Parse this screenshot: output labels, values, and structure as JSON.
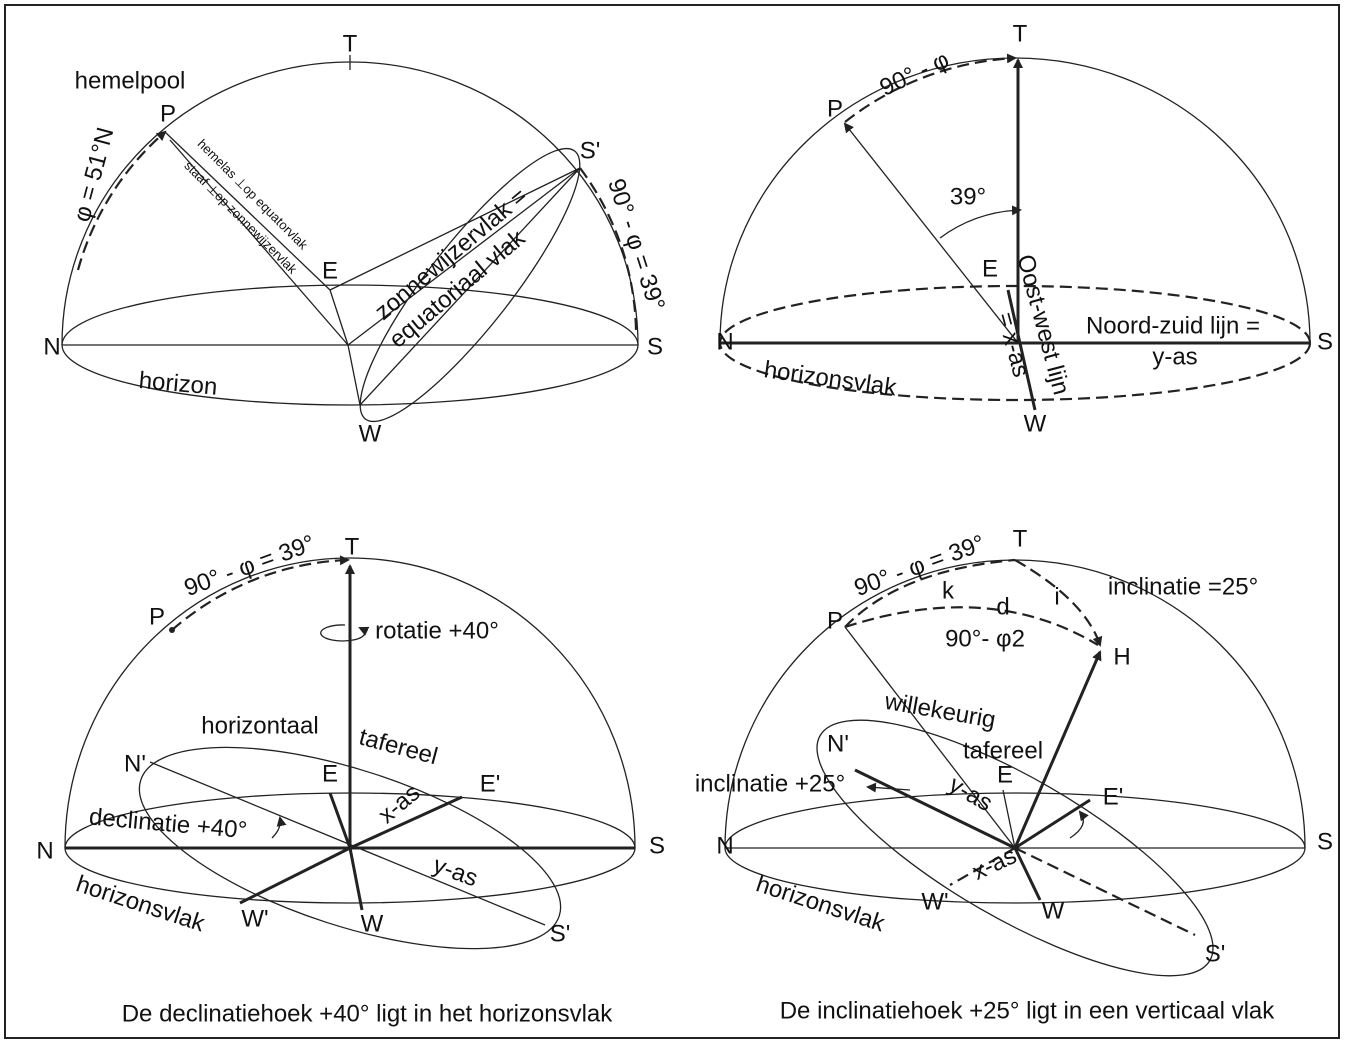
{
  "panels": [
    {
      "labels": [
        "T",
        "hemelpool",
        "P",
        "φ = 51°N",
        "hemelas ⊥op equatorvlak",
        "staaf ⊥op zonnewijzervlak",
        "zonnewijzervlak =",
        "equatoriaal vlak",
        "S'",
        "90° - φ = 39°",
        "E",
        "N",
        "S",
        "horizon",
        "W"
      ]
    },
    {
      "labels": [
        "T",
        "90° - φ",
        "P",
        "39°",
        "E",
        "Oost-west lijn",
        "= x-as",
        "Noord-zuid lijn =",
        "y-as",
        "N",
        "S",
        "horizonsvlak",
        "W"
      ]
    },
    {
      "labels": [
        "90° - φ = 39°",
        "T",
        "P",
        "rotatie +40°",
        "horizontaal",
        "tafereel",
        "N'",
        "E",
        "E'",
        "x-as",
        "declinatie +40°",
        "N",
        "S",
        "y-as",
        "horizonsvlak",
        "W'",
        "W",
        "S'"
      ],
      "caption": "De declinatiehoek +40° ligt in het horizonsvlak"
    },
    {
      "labels": [
        "90° - φ = 39°",
        "T",
        "k",
        "d",
        "i",
        "inclinatie =25°",
        "P",
        "90°- φ2",
        "H",
        "willekeurig",
        "tafereel",
        "N'",
        "E",
        "y-as",
        "inclinatie +25°",
        "E'",
        "N",
        "S",
        "x-as",
        "horizonsvlak",
        "W'",
        "W",
        "S'"
      ],
      "caption": "De inclinatiehoek +25° ligt in een verticaal vlak"
    }
  ]
}
